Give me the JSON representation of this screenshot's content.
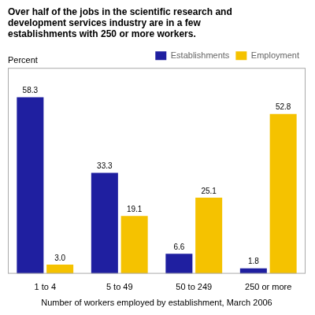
{
  "chart_data": {
    "type": "bar",
    "title": [
      "Over half of the jobs in the scientific research and",
      "development services industry are in a few",
      "establishments with 250 or more workers."
    ],
    "ylabel": "Percent",
    "xlabel": "Number of workers employed by establishment, March 2006",
    "categories": [
      "1 to 4",
      "5 to 49",
      "50 to 249",
      "250 or more"
    ],
    "series": [
      {
        "name": "Establishments",
        "color": "#1F1FA0",
        "values": [
          58.3,
          33.3,
          6.6,
          1.8
        ],
        "value_labels": [
          "58.3",
          "33.3",
          "6.6",
          "1.8"
        ]
      },
      {
        "name": "Employment",
        "color": "#F5C200",
        "values": [
          3.0,
          19.1,
          25.1,
          52.8
        ],
        "value_labels": [
          "3.0",
          "19.1",
          "25.1",
          "52.8"
        ]
      }
    ],
    "ylim": [
      0,
      68
    ],
    "grid": false,
    "legend": "upper right",
    "data_labels": true,
    "tick_labels": "x"
  }
}
